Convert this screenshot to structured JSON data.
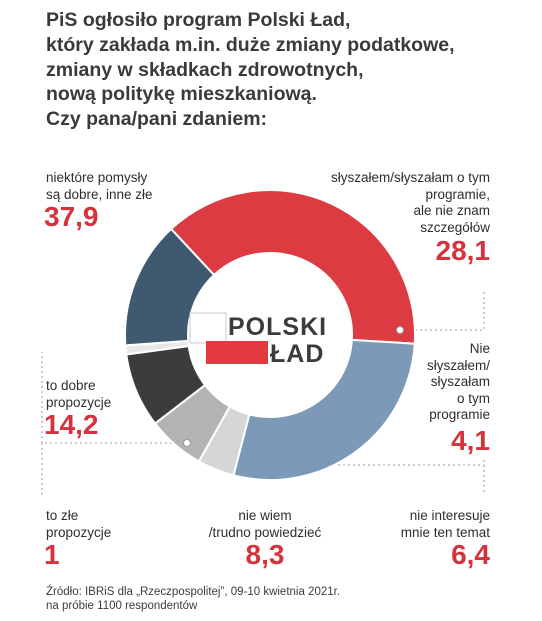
{
  "title_lines": [
    "PiS ogłosiło program Polski Ład,",
    "który zakłada m.in. duże zmiany podatkowe,",
    "zmiany w składkach zdrowotnych,",
    "nową politykę mieszkaniową.",
    "Czy pana/pani zdaniem:"
  ],
  "logo": {
    "line1": "POLSKI",
    "line2": "ŁAD"
  },
  "source_lines": [
    "Źródło: IBRiS dla „Rzeczpospolitej”, 09-10 kwietnia 2021r.",
    "na próbie 1100 respondentów"
  ],
  "chart_data": {
    "type": "pie",
    "variant": "donut",
    "unit": "%",
    "slices": [
      {
        "label_lines": [
          "niektóre pomysły",
          "są dobre, inne złe"
        ],
        "value": 37.9,
        "value_text": "37,9",
        "color": "#dc3b42"
      },
      {
        "label_lines": [
          "słyszałem/słyszałam o tym",
          "programie,",
          "ale nie znam",
          "szczegółów"
        ],
        "value": 28.1,
        "value_text": "28,1",
        "color": "#7c9ab8"
      },
      {
        "label_lines": [
          "Nie",
          "słyszałem/",
          "słyszałam",
          "o tym",
          "programie"
        ],
        "value": 4.1,
        "value_text": "4,1",
        "color": "#d6d6d6"
      },
      {
        "label_lines": [
          "nie interesuje",
          "mnie ten temat"
        ],
        "value": 6.4,
        "value_text": "6,4",
        "color": "#b3b3b3"
      },
      {
        "label_lines": [
          "nie wiem",
          "/trudno powiedzieć"
        ],
        "value": 8.3,
        "value_text": "8,3",
        "color": "#3c3c3c"
      },
      {
        "label_lines": [
          "to złe",
          "propozycje"
        ],
        "value": 1,
        "value_text": "1",
        "color": "#e8e8e8"
      },
      {
        "label_lines": [
          "to dobre",
          "propozycje"
        ],
        "value": 14.2,
        "value_text": "14,2",
        "color": "#3f5971"
      }
    ]
  }
}
